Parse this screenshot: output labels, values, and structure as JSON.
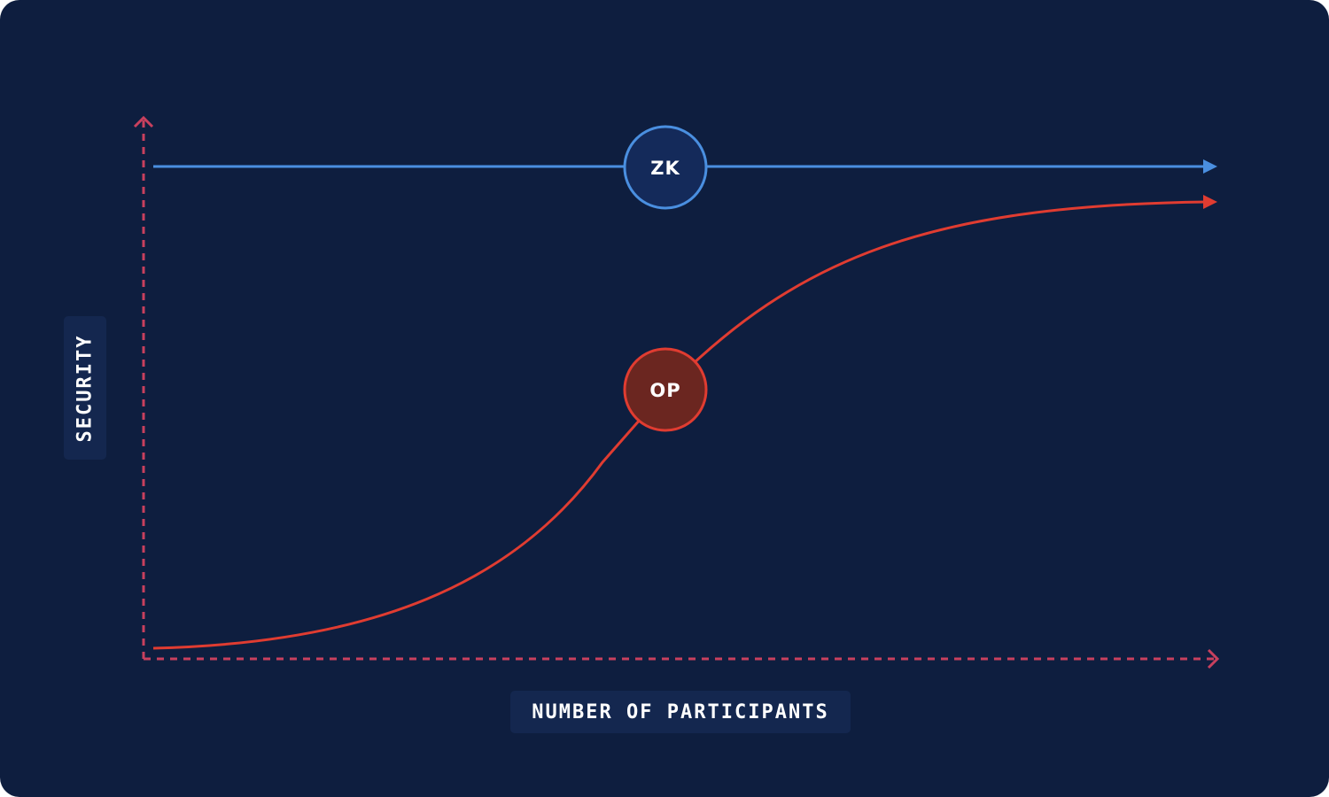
{
  "axes": {
    "x_label": "NUMBER OF PARTICIPANTS",
    "y_label": "SECURITY"
  },
  "nodes": {
    "zk": {
      "label": "ZK"
    },
    "op": {
      "label": "OP"
    }
  },
  "colors": {
    "background": "#0E1E3F",
    "label_box": "#14274F",
    "axis": "#C8405E",
    "zk_line": "#4A8FE0",
    "zk_fill": "#142A5A",
    "op_line": "#E03C31",
    "op_fill": "#6B2620"
  }
}
